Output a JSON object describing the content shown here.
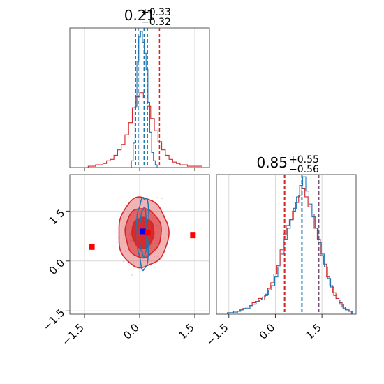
{
  "chart_data": [
    {
      "type": "bar",
      "panel": "marginal histogram, parameter 1",
      "title": {
        "main": "0.21",
        "sup": "+0.33",
        "sub": "−0.32"
      },
      "xlim": [
        -1.9,
        1.9
      ],
      "ticks": [
        -1.5,
        0.0,
        1.5
      ],
      "tick_labels": [],
      "grid": true,
      "series": [
        {
          "color": "#d62728",
          "bins": [
            -1.35,
            -1.25,
            -1.15,
            -1.05,
            -0.95,
            -0.85,
            -0.75,
            -0.65,
            -0.55,
            -0.45,
            -0.35,
            -0.25,
            -0.15,
            -0.05,
            0.05,
            0.15,
            0.25,
            0.35,
            0.45,
            0.55,
            0.65,
            0.75,
            0.85,
            0.95,
            1.05,
            1.15,
            1.25,
            1.35,
            1.45,
            1.55,
            1.65
          ],
          "values": [
            0.01,
            0.01,
            0.02,
            0.02,
            0.03,
            0.05,
            0.06,
            0.09,
            0.13,
            0.17,
            0.24,
            0.33,
            0.44,
            0.52,
            0.55,
            0.51,
            0.45,
            0.36,
            0.27,
            0.19,
            0.13,
            0.09,
            0.06,
            0.04,
            0.03,
            0.02,
            0.02,
            0.01,
            0.01,
            0.01,
            0.01
          ],
          "quantile_lines": [
            -0.11,
            0.21,
            0.54
          ]
        },
        {
          "color": "#1f77b4",
          "bins": [
            -0.2,
            -0.15,
            -0.1,
            -0.05,
            0.0,
            0.05,
            0.1,
            0.15,
            0.2,
            0.25,
            0.3,
            0.35,
            0.4,
            0.45
          ],
          "values": [
            0.05,
            0.18,
            0.45,
            0.78,
            0.96,
            1.0,
            0.92,
            0.84,
            0.72,
            0.48,
            0.26,
            0.11,
            0.05,
            0.02
          ],
          "quantile_lines": [
            -0.04,
            0.12,
            0.21
          ]
        }
      ]
    },
    {
      "type": "bar",
      "panel": "marginal histogram, parameter 2",
      "title": {
        "main": "0.85",
        "sup": "+0.55",
        "sub": "−0.56"
      },
      "xlim": [
        -1.9,
        2.6
      ],
      "ticks": [
        -1.5,
        0.0,
        1.5
      ],
      "tick_labels": [
        "−1.5",
        "0.0",
        "1.5"
      ],
      "grid": true,
      "series": [
        {
          "color": "#d62728",
          "bins": [
            -1.5,
            -1.4,
            -1.3,
            -1.2,
            -1.1,
            -1.0,
            -0.9,
            -0.8,
            -0.7,
            -0.6,
            -0.5,
            -0.4,
            -0.3,
            -0.2,
            -0.1,
            0.0,
            0.1,
            0.2,
            0.3,
            0.4,
            0.5,
            0.6,
            0.7,
            0.8,
            0.9,
            1.0,
            1.1,
            1.2,
            1.3,
            1.4,
            1.5,
            1.6,
            1.7,
            1.8,
            1.9,
            2.0,
            2.1,
            2.2,
            2.3,
            2.4
          ],
          "values": [
            0.01,
            0.01,
            0.02,
            0.02,
            0.03,
            0.04,
            0.05,
            0.06,
            0.08,
            0.09,
            0.11,
            0.1,
            0.13,
            0.18,
            0.22,
            0.28,
            0.34,
            0.45,
            0.56,
            0.62,
            0.66,
            0.72,
            0.78,
            0.83,
            0.88,
            0.82,
            0.75,
            0.7,
            0.6,
            0.52,
            0.41,
            0.35,
            0.26,
            0.2,
            0.15,
            0.11,
            0.08,
            0.05,
            0.03,
            0.02
          ]
        },
        {
          "color": "#1f77b4",
          "bins": [
            -1.5,
            -1.4,
            -1.3,
            -1.2,
            -1.1,
            -1.0,
            -0.9,
            -0.8,
            -0.7,
            -0.6,
            -0.5,
            -0.4,
            -0.3,
            -0.2,
            -0.1,
            0.0,
            0.1,
            0.2,
            0.3,
            0.4,
            0.5,
            0.6,
            0.7,
            0.8,
            0.9,
            1.0,
            1.1,
            1.2,
            1.3,
            1.4,
            1.5,
            1.6,
            1.7,
            1.8,
            1.9,
            2.0,
            2.1,
            2.2,
            2.3,
            2.4
          ],
          "values": [
            0.01,
            0.01,
            0.01,
            0.02,
            0.03,
            0.04,
            0.04,
            0.06,
            0.07,
            0.09,
            0.1,
            0.12,
            0.14,
            0.17,
            0.2,
            0.26,
            0.33,
            0.42,
            0.52,
            0.6,
            0.66,
            0.74,
            0.82,
            0.9,
            0.96,
            0.86,
            0.77,
            0.68,
            0.6,
            0.5,
            0.42,
            0.33,
            0.25,
            0.19,
            0.13,
            0.1,
            0.07,
            0.04,
            0.03,
            0.02
          ]
        }
      ],
      "quantile_lines": {
        "red": [
          0.29,
          0.85,
          1.4
        ],
        "blue": [
          0.33,
          0.86,
          1.38
        ]
      }
    },
    {
      "type": "scatter",
      "panel": "2D contour, parameter 1 vs parameter 2",
      "xlim": [
        -1.9,
        1.9
      ],
      "ylim": [
        -1.6,
        2.6
      ],
      "xticks": [
        -1.5,
        0.0,
        1.5
      ],
      "yticks": [
        -1.5,
        0.0,
        1.5
      ],
      "xtick_labels": [
        "−1.5",
        "0.0",
        "1.5"
      ],
      "ytick_labels": [
        "−1.5",
        "0.0",
        "1.5"
      ],
      "grid": true,
      "filled_contours": {
        "color": "#d62728",
        "center": [
          0.09,
          0.85
        ],
        "levels": [
          {
            "rx": 0.68,
            "ry": 1.05,
            "opacity": 0.35
          },
          {
            "rx": 0.49,
            "ry": 0.74,
            "opacity": 0.55
          },
          {
            "rx": 0.3,
            "ry": 0.47,
            "opacity": 0.95
          }
        ]
      },
      "blue_contours": {
        "color": "#1f77b4",
        "center": [
          0.1,
          0.86
        ],
        "levels": [
          {
            "rx": 0.17,
            "ry": 1.08
          },
          {
            "rx": 0.1,
            "ry": 0.72
          }
        ]
      },
      "points": [
        {
          "x": -1.3,
          "y": 0.42,
          "color": "#ff0000",
          "label": "red-square"
        },
        {
          "x": 1.45,
          "y": 0.77,
          "color": "#ff0000",
          "label": "red-square"
        },
        {
          "x": 0.09,
          "y": 0.89,
          "color": "#0000ff",
          "label": "blue-square"
        },
        {
          "x": 0.22,
          "y": 0.85,
          "color": "#ff0000",
          "label": "red-square"
        }
      ]
    }
  ]
}
